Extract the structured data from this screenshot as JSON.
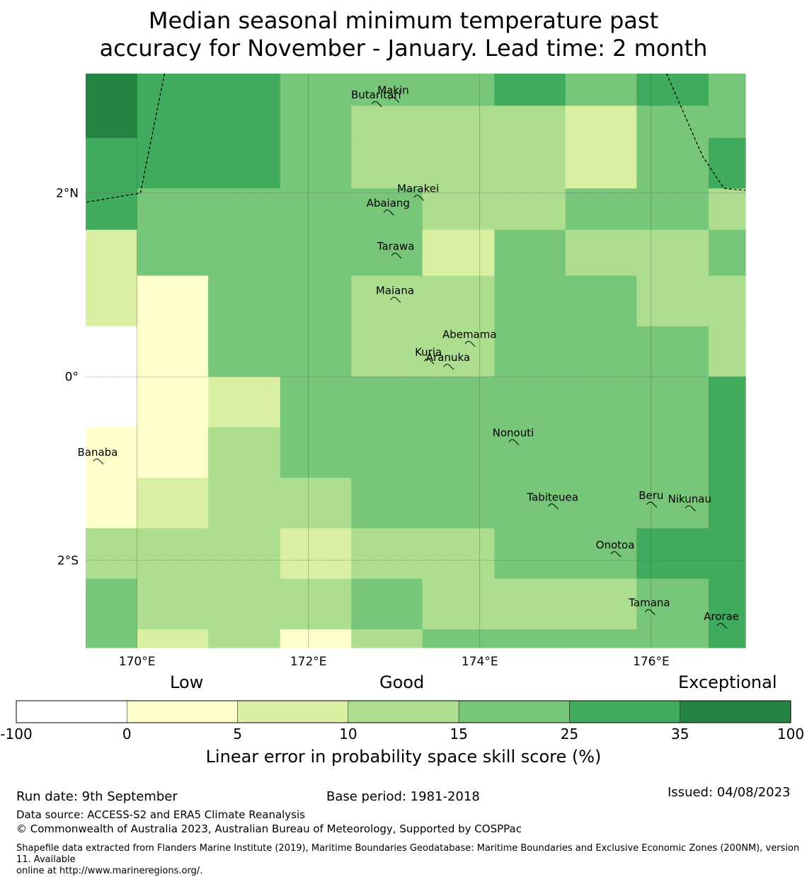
{
  "title": {
    "line1": "Median seasonal minimum temperature past",
    "line2": "accuracy for November - January. Lead time: 2 month"
  },
  "map": {
    "lon_range": [
      169.4,
      177.1
    ],
    "lat_range": [
      -2.95,
      3.3
    ],
    "cell_size_lon": 0.833,
    "grid_origin_lon": 170.0,
    "grid_top_lat": 3.3,
    "cell_rows_lat": [
      [
        3.3,
        2.95
      ],
      [
        2.95,
        2.6
      ],
      [
        2.6,
        2.05
      ],
      [
        2.05,
        1.6
      ],
      [
        1.6,
        1.1
      ],
      [
        1.1,
        0.55
      ],
      [
        0.55,
        0.0
      ],
      [
        0.0,
        -0.55
      ],
      [
        -0.55,
        -1.1
      ],
      [
        -1.1,
        -1.65
      ],
      [
        -1.65,
        -2.2
      ],
      [
        -2.2,
        -2.75
      ],
      [
        -2.75,
        -2.95
      ]
    ],
    "cell_cols_lon": [
      [
        169.4,
        170.0
      ],
      [
        170.0,
        170.83
      ],
      [
        170.83,
        171.67
      ],
      [
        171.67,
        172.5
      ],
      [
        172.5,
        173.33
      ],
      [
        173.33,
        174.17
      ],
      [
        174.17,
        175.0
      ],
      [
        175.0,
        175.83
      ],
      [
        175.83,
        176.67
      ],
      [
        176.67,
        177.1
      ]
    ],
    "skill_class": [
      [
        6,
        5,
        5,
        4,
        4,
        4,
        5,
        4,
        5,
        4
      ],
      [
        6,
        5,
        5,
        4,
        3,
        3,
        3,
        2,
        4,
        4
      ],
      [
        5,
        5,
        5,
        4,
        3,
        3,
        3,
        2,
        4,
        5
      ],
      [
        5,
        4,
        4,
        4,
        4,
        3,
        3,
        4,
        4,
        3
      ],
      [
        2,
        4,
        4,
        4,
        4,
        2,
        4,
        3,
        3,
        4
      ],
      [
        2,
        1,
        4,
        4,
        3,
        3,
        4,
        4,
        3,
        3
      ],
      [
        0,
        1,
        4,
        4,
        3,
        3,
        4,
        4,
        4,
        3
      ],
      [
        0,
        1,
        2,
        4,
        4,
        4,
        4,
        4,
        4,
        5
      ],
      [
        1,
        1,
        3,
        4,
        4,
        4,
        4,
        4,
        4,
        5
      ],
      [
        1,
        2,
        3,
        3,
        4,
        4,
        4,
        4,
        4,
        5
      ],
      [
        3,
        3,
        3,
        2,
        3,
        3,
        4,
        4,
        5,
        5
      ],
      [
        4,
        3,
        3,
        3,
        4,
        3,
        3,
        3,
        4,
        5
      ],
      [
        4,
        2,
        3,
        1,
        3,
        4,
        4,
        4,
        4,
        5
      ]
    ],
    "gridlines": {
      "lon": [
        170,
        172,
        174,
        176
      ],
      "lat": [
        2,
        0,
        -2
      ],
      "lon_labels": [
        "170°E",
        "172°E",
        "174°E",
        "176°E"
      ],
      "lat_labels": [
        "2°N",
        "0°",
        "2°S"
      ]
    },
    "islands": [
      {
        "name": "Makin",
        "lon": 172.99,
        "lat": 3.08
      },
      {
        "name": "Butaritari",
        "lon": 172.79,
        "lat": 3.03
      },
      {
        "name": "Marakei",
        "lon": 173.28,
        "lat": 2.01
      },
      {
        "name": "Abaiang",
        "lon": 172.93,
        "lat": 1.85
      },
      {
        "name": "Tarawa",
        "lon": 173.02,
        "lat": 1.38
      },
      {
        "name": "Maiana",
        "lon": 173.01,
        "lat": 0.9
      },
      {
        "name": "Abemama",
        "lon": 173.88,
        "lat": 0.42
      },
      {
        "name": "Kuria",
        "lon": 173.4,
        "lat": 0.23
      },
      {
        "name": "Aranuka",
        "lon": 173.63,
        "lat": 0.17
      },
      {
        "name": "Nonouti",
        "lon": 174.39,
        "lat": -0.65
      },
      {
        "name": "Banaba",
        "lon": 169.54,
        "lat": -0.86
      },
      {
        "name": "Tabiteuea",
        "lon": 174.85,
        "lat": -1.35
      },
      {
        "name": "Beru",
        "lon": 176.0,
        "lat": -1.33
      },
      {
        "name": "Nikunau",
        "lon": 176.45,
        "lat": -1.37
      },
      {
        "name": "Onotoa",
        "lon": 175.58,
        "lat": -1.87
      },
      {
        "name": "Tamana",
        "lon": 175.98,
        "lat": -2.5
      },
      {
        "name": "Arorae",
        "lon": 176.82,
        "lat": -2.65
      }
    ],
    "eez_boundary_west": [
      [
        170.32,
        3.3
      ],
      [
        170.04,
        2.0
      ],
      [
        169.4,
        1.9
      ]
    ],
    "eez_boundary_east": [
      [
        176.18,
        3.3
      ],
      [
        176.6,
        2.4
      ],
      [
        176.85,
        2.05
      ],
      [
        177.1,
        2.03
      ]
    ]
  },
  "colorbar": {
    "colors": [
      "#ffffff",
      "#ffffcc",
      "#d9f0a3",
      "#addd8e",
      "#78c679",
      "#41ab5d",
      "#238443"
    ],
    "ticks": [
      "-100",
      "0",
      "5",
      "10",
      "15",
      "25",
      "35",
      "100"
    ],
    "category_labels": [
      "Low",
      "Good",
      "Exceptional"
    ],
    "label": "Linear error in probability space skill score (%)"
  },
  "footer": {
    "run_date": "Run date: 9th September",
    "base_period": "Base period: 1981-2018",
    "issued": "Issued: 04/08/2023",
    "data_source": "Data source: ACCESS-S2 and ERA5 Climate Reanalysis",
    "copyright": "© Commonwealth of Australia 2023, Australian Bureau of Meteorology, Supported by COSPPac",
    "shapefile_1": "Shapefile data extracted from Flanders Marine Institute (2019), Maritime Boundaries Geodatabase: Maritime Boundaries and Exclusive Economic Zones (200NM), version 11. Available",
    "shapefile_2": "online at http://www.marineregions.org/."
  }
}
